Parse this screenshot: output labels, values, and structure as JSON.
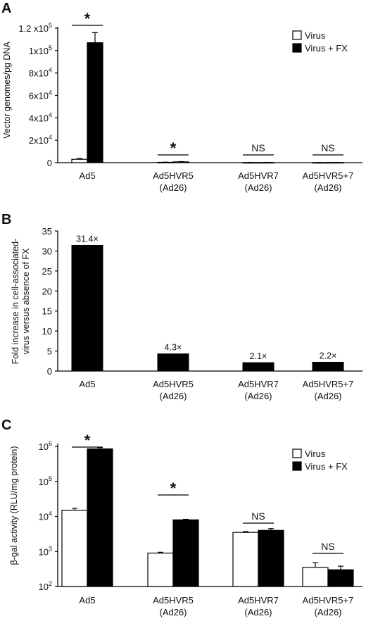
{
  "chart_data": [
    {
      "panel": "A",
      "type": "bar",
      "ylabel": "Vector genomes/pg DNA",
      "ylim": [
        0,
        120000
      ],
      "yticks": [
        0,
        20000,
        40000,
        60000,
        80000,
        100000,
        120000
      ],
      "ytick_labels": [
        {
          "base": "0",
          "exp": ""
        },
        {
          "base": "2x10",
          "exp": "4"
        },
        {
          "base": "4x10",
          "exp": "4"
        },
        {
          "base": "6x10",
          "exp": "4"
        },
        {
          "base": "8x10",
          "exp": "4"
        },
        {
          "base": "1x10",
          "exp": "5"
        },
        {
          "base": "1.2 x10",
          "exp": "5"
        }
      ],
      "categories": [
        {
          "line1": "Ad5",
          "line2": ""
        },
        {
          "line1": "Ad5HVR5",
          "line2": "(Ad26)"
        },
        {
          "line1": "Ad5HVR7",
          "line2": "(Ad26)"
        },
        {
          "line1": "Ad5HVR5+7",
          "line2": "(Ad26)"
        }
      ],
      "series": [
        {
          "name": "Virus",
          "color": "#ffffff",
          "values": [
            3000,
            300,
            100,
            100
          ],
          "errors": [
            700,
            150,
            50,
            50
          ]
        },
        {
          "name": "Virus + FX",
          "color": "#000000",
          "values": [
            107000,
            700,
            150,
            150
          ],
          "errors": [
            9000,
            200,
            50,
            50
          ]
        }
      ],
      "significance": [
        "*",
        "*",
        "NS",
        "NS"
      ],
      "legend_position": "top-right"
    },
    {
      "panel": "B",
      "type": "bar",
      "ylabel_lines": [
        "Fold increase in cell-associated-",
        "virus versus absence of FX"
      ],
      "ylim": [
        0,
        35
      ],
      "yticks": [
        0,
        5,
        10,
        15,
        20,
        25,
        30,
        35
      ],
      "categories": [
        {
          "line1": "Ad5",
          "line2": ""
        },
        {
          "line1": "Ad5HVR5",
          "line2": "(Ad26)"
        },
        {
          "line1": "Ad5HVR7",
          "line2": "(Ad26)"
        },
        {
          "line1": "Ad5HVR5+7",
          "line2": "(Ad26)"
        }
      ],
      "values": [
        31.4,
        4.3,
        2.1,
        2.2
      ],
      "data_labels": [
        "31.4×",
        "4.3×",
        "2.1×",
        "2.2×"
      ],
      "color": "#000000"
    },
    {
      "panel": "C",
      "type": "bar",
      "yscale": "log",
      "ylabel": "β-gal activity (RLU/mg protein)",
      "ylim": [
        100,
        1000000
      ],
      "yticks": [
        100,
        1000,
        10000,
        100000,
        1000000
      ],
      "ytick_labels": [
        {
          "base": "10",
          "exp": "2"
        },
        {
          "base": "10",
          "exp": "3"
        },
        {
          "base": "10",
          "exp": "4"
        },
        {
          "base": "10",
          "exp": "5"
        },
        {
          "base": "10",
          "exp": "6"
        }
      ],
      "categories": [
        {
          "line1": "Ad5",
          "line2": ""
        },
        {
          "line1": "Ad5HVR5",
          "line2": "(Ad26)"
        },
        {
          "line1": "Ad5HVR7",
          "line2": "(Ad26)"
        },
        {
          "line1": "Ad5HVR5+7",
          "line2": "(Ad26)"
        }
      ],
      "series": [
        {
          "name": "Virus",
          "color": "#ffffff",
          "values": [
            15000,
            900,
            3500,
            350
          ],
          "errors_upper": [
            17000,
            950,
            3700,
            480
          ]
        },
        {
          "name": "Virus + FX",
          "color": "#000000",
          "values": [
            850000,
            8000,
            4000,
            300
          ],
          "errors_upper": [
            930000,
            8300,
            4500,
            380
          ]
        }
      ],
      "significance": [
        "*",
        "*",
        "NS",
        "NS"
      ],
      "legend_position": "top-right"
    }
  ]
}
